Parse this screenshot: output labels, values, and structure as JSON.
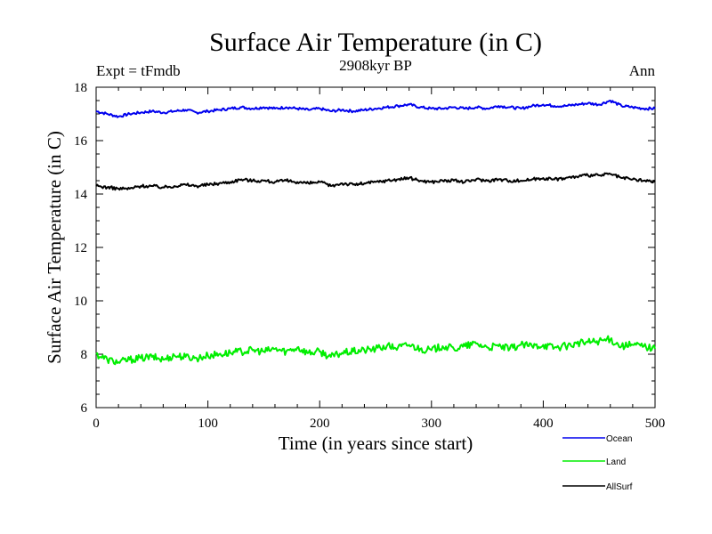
{
  "chart_data": {
    "type": "line",
    "title": "Surface Air Temperature (in C)",
    "subtitle": "2908kyr BP",
    "left_annotation": "Expt = tFmdb",
    "right_annotation": "Ann",
    "xlabel": "Time (in years since start)",
    "ylabel": "Surface Air Temperature (in C)",
    "xlim": [
      0,
      500
    ],
    "ylim": [
      6,
      18
    ],
    "xticks": [
      0,
      100,
      200,
      300,
      400,
      500
    ],
    "yticks": [
      6,
      8,
      10,
      12,
      14,
      16,
      18
    ],
    "x": [
      0,
      10,
      20,
      30,
      40,
      50,
      60,
      70,
      80,
      90,
      100,
      110,
      120,
      130,
      140,
      150,
      160,
      170,
      180,
      190,
      200,
      210,
      220,
      230,
      240,
      250,
      260,
      270,
      280,
      290,
      300,
      310,
      320,
      330,
      340,
      350,
      360,
      370,
      380,
      390,
      400,
      410,
      420,
      430,
      440,
      450,
      460,
      470,
      480,
      490,
      500
    ],
    "series": [
      {
        "name": "Ocean",
        "color": "#0000ee",
        "values": [
          17.1,
          17.0,
          16.9,
          17.0,
          17.05,
          17.1,
          17.05,
          17.1,
          17.15,
          17.05,
          17.1,
          17.15,
          17.2,
          17.25,
          17.2,
          17.25,
          17.2,
          17.25,
          17.2,
          17.15,
          17.2,
          17.1,
          17.15,
          17.1,
          17.15,
          17.2,
          17.25,
          17.3,
          17.35,
          17.25,
          17.2,
          17.2,
          17.25,
          17.2,
          17.25,
          17.2,
          17.3,
          17.25,
          17.2,
          17.3,
          17.35,
          17.3,
          17.3,
          17.35,
          17.4,
          17.35,
          17.5,
          17.3,
          17.25,
          17.2,
          17.2
        ]
      },
      {
        "name": "Land",
        "color": "#00ee00",
        "values": [
          8.0,
          7.8,
          7.7,
          7.8,
          7.85,
          7.9,
          7.8,
          7.95,
          7.9,
          7.85,
          7.95,
          8.0,
          8.05,
          8.1,
          8.15,
          8.1,
          8.2,
          8.1,
          8.25,
          8.05,
          8.1,
          7.9,
          8.05,
          8.1,
          8.15,
          8.2,
          8.3,
          8.25,
          8.35,
          8.2,
          8.15,
          8.3,
          8.2,
          8.3,
          8.4,
          8.25,
          8.3,
          8.2,
          8.35,
          8.3,
          8.35,
          8.25,
          8.3,
          8.4,
          8.45,
          8.5,
          8.55,
          8.3,
          8.35,
          8.3,
          8.2
        ]
      },
      {
        "name": "AllSurf",
        "color": "#000000",
        "values": [
          14.3,
          14.25,
          14.2,
          14.2,
          14.3,
          14.3,
          14.25,
          14.3,
          14.35,
          14.3,
          14.35,
          14.4,
          14.45,
          14.55,
          14.5,
          14.5,
          14.45,
          14.5,
          14.45,
          14.4,
          14.45,
          14.3,
          14.4,
          14.35,
          14.4,
          14.45,
          14.5,
          14.55,
          14.6,
          14.5,
          14.45,
          14.5,
          14.5,
          14.45,
          14.55,
          14.5,
          14.55,
          14.5,
          14.5,
          14.55,
          14.6,
          14.55,
          14.6,
          14.65,
          14.7,
          14.7,
          14.75,
          14.6,
          14.55,
          14.5,
          14.45
        ]
      }
    ],
    "legend_position": "bottom-right"
  }
}
